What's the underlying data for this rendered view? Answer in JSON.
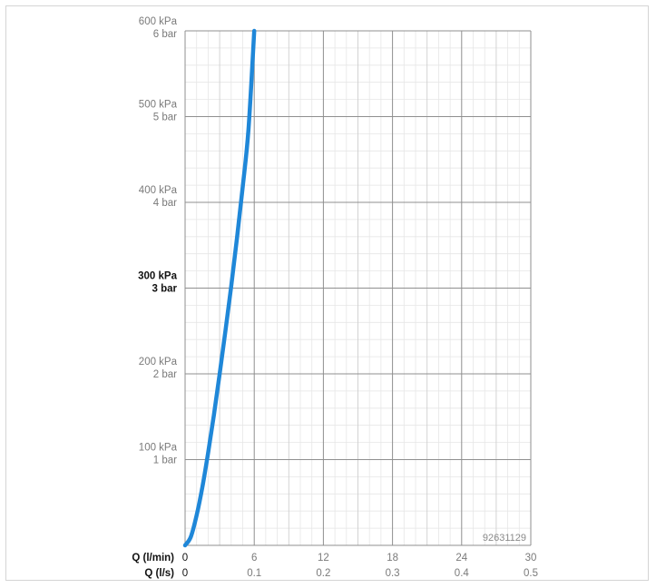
{
  "chart_data": {
    "type": "line",
    "title": "",
    "code": "92631129",
    "x_primary": {
      "label": "Q (l/min)",
      "ticks": [
        "0",
        "6",
        "12",
        "18",
        "24",
        "30"
      ],
      "range": [
        0,
        30
      ]
    },
    "x_secondary": {
      "label": "Q (l/s)",
      "ticks": [
        "0",
        "0.1",
        "0.2",
        "0.3",
        "0.4",
        "0.5"
      ]
    },
    "y_axis": {
      "range": [
        0,
        600
      ],
      "unit": "kPa",
      "ticks": [
        {
          "value": 100,
          "kpa": "100 kPa",
          "bar": "1 bar",
          "bold": false
        },
        {
          "value": 200,
          "kpa": "200 kPa",
          "bar": "2 bar",
          "bold": false
        },
        {
          "value": 300,
          "kpa": "300 kPa",
          "bar": "3 bar",
          "bold": true
        },
        {
          "value": 400,
          "kpa": "400 kPa",
          "bar": "4 bar",
          "bold": false
        },
        {
          "value": 500,
          "kpa": "500 kPa",
          "bar": "5 bar",
          "bold": false
        },
        {
          "value": 600,
          "kpa": "600 kPa",
          "bar": "6 bar",
          "bold": false
        }
      ]
    },
    "grid": true,
    "series": [
      {
        "color": "#1f87d8",
        "x": [
          0,
          0.5,
          1,
          1.5,
          2,
          2.5,
          3,
          3.5,
          4,
          4.5,
          5,
          5.5,
          6
        ],
        "y": [
          0,
          10,
          35,
          68,
          108,
          152,
          200,
          250,
          302,
          358,
          418,
          485,
          600
        ]
      }
    ]
  }
}
